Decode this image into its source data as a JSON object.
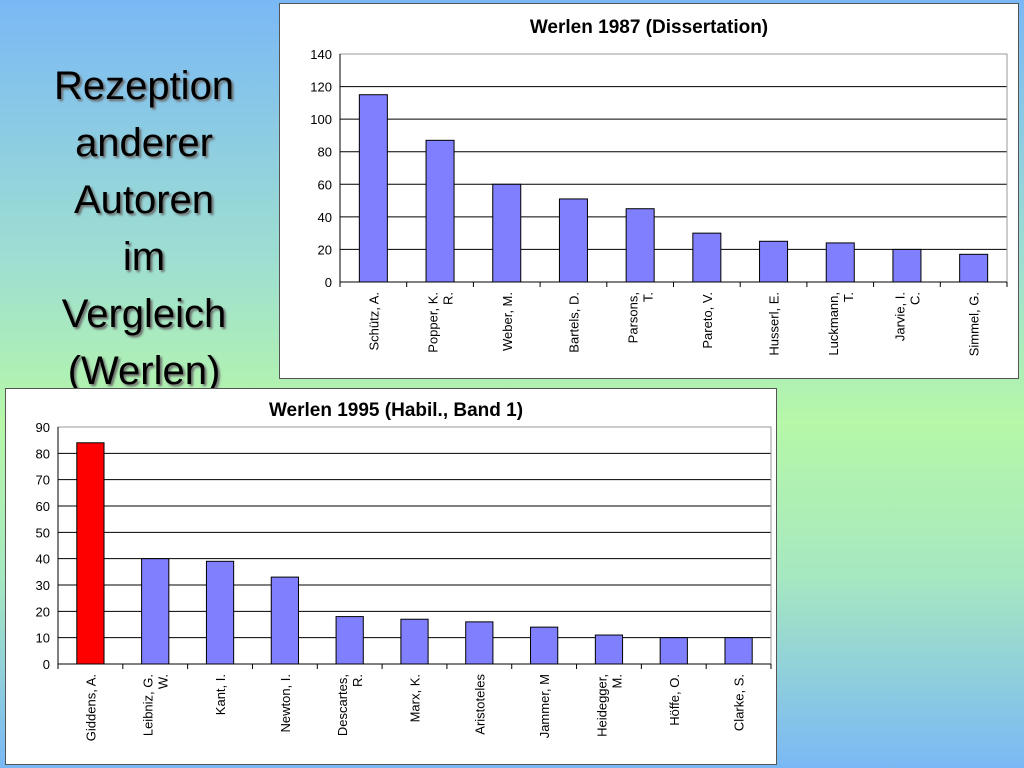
{
  "slide": {
    "title_lines": [
      "Rezeption",
      "anderer",
      "Autoren",
      "im",
      "Vergleich",
      "(Werlen)"
    ]
  },
  "colors": {
    "bar": "#8080ff",
    "highlight": "#ff0000",
    "bar_stroke": "#000000"
  },
  "chart_data": [
    {
      "type": "bar",
      "title": "Werlen 1987 (Dissertation)",
      "categories": [
        [
          "Schütz, A."
        ],
        [
          "Popper, K.",
          "R."
        ],
        [
          "Weber, M."
        ],
        [
          "Bartels, D."
        ],
        [
          "Parsons,",
          "T."
        ],
        [
          "Pareto, V."
        ],
        [
          "Husserl, E."
        ],
        [
          "Luckmann,",
          "T."
        ],
        [
          "Jarvie, I.",
          "C."
        ],
        [
          "Simmel, G."
        ]
      ],
      "values": [
        115,
        87,
        60,
        51,
        45,
        30,
        25,
        24,
        20,
        17
      ],
      "ylim": [
        0,
        140
      ],
      "yticks": [
        0,
        20,
        40,
        60,
        80,
        100,
        120,
        140
      ],
      "grid": true,
      "highlight_index": null
    },
    {
      "type": "bar",
      "title": "Werlen 1995 (Habil., Band 1)",
      "categories": [
        [
          "Giddens, A."
        ],
        [
          "Leibniz, G.",
          "W."
        ],
        [
          "Kant, I."
        ],
        [
          "Newton, I."
        ],
        [
          "Descartes,",
          "R."
        ],
        [
          "Marx, K."
        ],
        [
          "Aristoteles"
        ],
        [
          "Jammer, M"
        ],
        [
          "Heidegger,",
          "M."
        ],
        [
          "Höffe, O."
        ],
        [
          "Clarke, S."
        ]
      ],
      "values": [
        84,
        40,
        39,
        33,
        18,
        17,
        16,
        14,
        11,
        10,
        10
      ],
      "ylim": [
        0,
        90
      ],
      "yticks": [
        0,
        10,
        20,
        30,
        40,
        50,
        60,
        70,
        80,
        90
      ],
      "grid": true,
      "highlight_index": 0
    }
  ]
}
